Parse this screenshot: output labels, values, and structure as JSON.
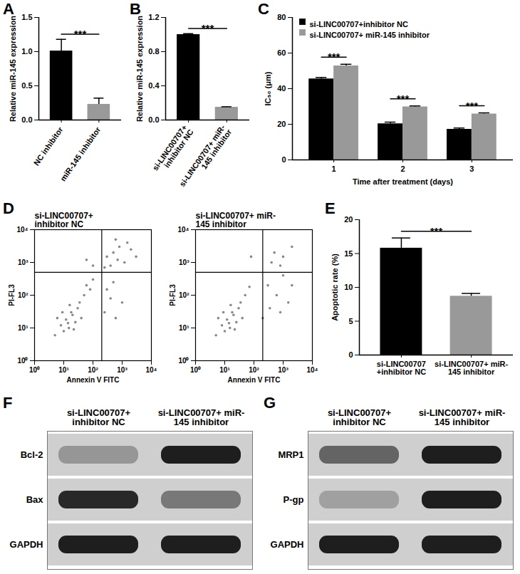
{
  "chart_data": [
    {
      "panel": "A",
      "type": "bar",
      "categories": [
        "NC inhibitor",
        "miR-145 inhibitor"
      ],
      "values": [
        1.01,
        0.23
      ],
      "error": [
        0.17,
        0.09
      ],
      "colors": [
        "#000000",
        "#999999"
      ],
      "ylabel": "Relative miR-145 expression",
      "ylim": [
        0,
        1.5
      ],
      "yticks": [
        {
          "value": 0,
          "label": "0.0"
        },
        {
          "value": 0.5,
          "label": "0.5"
        },
        {
          "value": 1,
          "label": "1.0"
        },
        {
          "value": 1.5,
          "label": "1.5"
        }
      ],
      "significance": [
        {
          "between": [
            0,
            1
          ],
          "label": "***"
        }
      ]
    },
    {
      "panel": "B",
      "type": "bar",
      "categories": [
        "si-LINC00707+ inhibitor NC",
        "si-LINC00707+ miR-145 inhibitor"
      ],
      "values": [
        1.0,
        0.15
      ],
      "error": [
        0.01,
        0.005
      ],
      "colors": [
        "#000000",
        "#999999"
      ],
      "ylabel": "Relative miR-145 expression",
      "ylim": [
        0,
        1.2
      ],
      "yticks": [
        {
          "value": 0,
          "label": "0.0"
        },
        {
          "value": 0.4,
          "label": "0.4"
        },
        {
          "value": 0.8,
          "label": "0.8"
        },
        {
          "value": 1.2,
          "label": "1.2"
        }
      ],
      "significance": [
        {
          "between": [
            0,
            1
          ],
          "label": "***"
        }
      ]
    },
    {
      "panel": "C",
      "type": "bar",
      "categories": [
        "1",
        "2",
        "3"
      ],
      "xlabel": "Time after treatment (days)",
      "ylabel": "IC₅₀ (μm)",
      "ylim": [
        0,
        80
      ],
      "yticks": [
        0,
        20,
        40,
        60,
        80
      ],
      "legend": "top-left",
      "series": [
        {
          "name": "si-LINC00707+inhibitor NC",
          "color": "#000000",
          "values": [
            45.5,
            20.3,
            17.2
          ],
          "error": [
            0.8,
            0.9,
            0.7
          ]
        },
        {
          "name": "si-LINC00707+ miR-145 inhibitor",
          "color": "#999999",
          "values": [
            52.8,
            29.8,
            25.8
          ],
          "error": [
            0.9,
            0.5,
            0.6
          ]
        }
      ],
      "significance": [
        {
          "category": 0,
          "label": "***"
        },
        {
          "category": 1,
          "label": "***"
        },
        {
          "category": 2,
          "label": "***"
        }
      ]
    },
    {
      "panel": "D",
      "type": "scatter",
      "log": true,
      "xlabel": "Annexin V FITC",
      "ylabel": "PI-FL3",
      "xlim": [
        1,
        10000
      ],
      "ylim": [
        1,
        10000
      ],
      "xticks": [
        {
          "value": 1,
          "label": "10⁰"
        },
        {
          "value": 10,
          "label": "10¹"
        },
        {
          "value": 100,
          "label": "10²"
        },
        {
          "value": 1000,
          "label": "10³"
        },
        {
          "value": 10000,
          "label": "10⁴"
        }
      ],
      "yticks": [
        {
          "value": 1,
          "label": "10⁰"
        },
        {
          "value": 10,
          "label": "10¹"
        },
        {
          "value": 100,
          "label": "10²"
        },
        {
          "value": 1000,
          "label": "10³"
        },
        {
          "value": 10000,
          "label": "10⁴"
        }
      ],
      "gates": {
        "x": 200,
        "y": 500
      },
      "color": "#888888",
      "panels": [
        {
          "title": "si-LINC00707+ inhibitor NC",
          "points": [
            [
              8,
              12
            ],
            [
              12,
              18
            ],
            [
              15,
              10
            ],
            [
              20,
              25
            ],
            [
              10,
              8
            ],
            [
              25,
              15
            ],
            [
              18,
              30
            ],
            [
              6,
              20
            ],
            [
              30,
              40
            ],
            [
              14,
              14
            ],
            [
              22,
              9
            ],
            [
              9,
              30
            ],
            [
              40,
              20
            ],
            [
              35,
              60
            ],
            [
              5,
              6
            ],
            [
              16,
              50
            ],
            [
              50,
              100
            ],
            [
              60,
              200
            ],
            [
              80,
              150
            ],
            [
              100,
              300
            ],
            [
              250,
              30
            ],
            [
              400,
              80
            ],
            [
              600,
              20
            ],
            [
              300,
              150
            ],
            [
              1000,
              60
            ],
            [
              500,
              250
            ],
            [
              300,
              1500
            ],
            [
              500,
              2000
            ],
            [
              800,
              3000
            ],
            [
              1200,
              1000
            ],
            [
              2000,
              2500
            ],
            [
              400,
              800
            ],
            [
              700,
              1200
            ],
            [
              1500,
              4000
            ],
            [
              250,
              700
            ],
            [
              3000,
              1500
            ],
            [
              600,
              5000
            ],
            [
              100,
              800
            ],
            [
              60,
              1200
            ]
          ]
        },
        {
          "title": "si-LINC00707+ miR-145 inhibitor",
          "points": [
            [
              8,
              12
            ],
            [
              12,
              18
            ],
            [
              15,
              10
            ],
            [
              20,
              25
            ],
            [
              10,
              8
            ],
            [
              25,
              15
            ],
            [
              18,
              30
            ],
            [
              6,
              20
            ],
            [
              30,
              40
            ],
            [
              14,
              14
            ],
            [
              22,
              9
            ],
            [
              9,
              30
            ],
            [
              40,
              20
            ],
            [
              35,
              60
            ],
            [
              5,
              6
            ],
            [
              16,
              50
            ],
            [
              50,
              100
            ],
            [
              70,
              180
            ],
            [
              200,
              20
            ],
            [
              350,
              40
            ],
            [
              800,
              30
            ],
            [
              1500,
              60
            ],
            [
              600,
              100
            ],
            [
              300,
              200
            ],
            [
              2000,
              200
            ],
            [
              1000,
              400
            ],
            [
              500,
              2000
            ],
            [
              1000,
              1500
            ],
            [
              2000,
              3000
            ],
            [
              800,
              800
            ],
            [
              400,
              1000
            ],
            [
              80,
              1500
            ]
          ]
        }
      ]
    },
    {
      "panel": "E",
      "type": "bar",
      "categories": [
        "si-LINC00707 +inhibitor NC",
        "si-LINC00707+ miR-145 inhibitor"
      ],
      "values": [
        15.8,
        8.7
      ],
      "error": [
        1.5,
        0.4
      ],
      "colors": [
        "#000000",
        "#999999"
      ],
      "ylabel": "Apoptotic rate (%)",
      "ylim": [
        0,
        20
      ],
      "yticks": [
        0,
        5,
        10,
        15,
        20
      ],
      "significance": [
        {
          "between": [
            0,
            1
          ],
          "label": "***"
        }
      ]
    },
    {
      "panel": "F",
      "type": "blot",
      "lanes": [
        "si-LINC00707+ inhibitor NC",
        "si-LINC00707+ miR-145 inhibitor"
      ],
      "intensity_range": [
        0,
        1
      ],
      "bands": [
        {
          "name": "Bcl-2",
          "intensity": [
            0.3,
            0.9
          ]
        },
        {
          "name": "Bax",
          "intensity": [
            0.85,
            0.45
          ]
        },
        {
          "name": "GAPDH",
          "intensity": [
            0.9,
            0.9
          ]
        }
      ]
    },
    {
      "panel": "G",
      "type": "blot",
      "lanes": [
        "si-LINC00707+ inhibitor NC",
        "si-LINC00707+ miR-145 inhibitor"
      ],
      "intensity_range": [
        0,
        1
      ],
      "bands": [
        {
          "name": "MRP1",
          "intensity": [
            0.55,
            0.9
          ]
        },
        {
          "name": "P-gp",
          "intensity": [
            0.25,
            0.9
          ]
        },
        {
          "name": "GAPDH",
          "intensity": [
            0.9,
            0.9
          ]
        }
      ]
    }
  ]
}
